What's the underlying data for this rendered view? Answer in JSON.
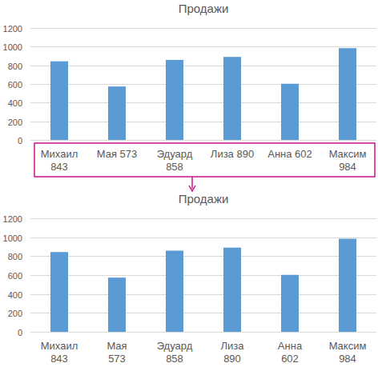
{
  "chart_data": [
    {
      "type": "bar",
      "title": "Продажи",
      "categories": [
        "Михаил 843",
        "Мая 573",
        "Эдуард 858",
        "Лиза 890",
        "Анна 602",
        "Максим 984"
      ],
      "values": [
        843,
        573,
        858,
        890,
        602,
        984
      ],
      "color": "#5b9bd5",
      "ylim": [
        0,
        1200
      ],
      "yticks": [
        0,
        200,
        400,
        600,
        800,
        1000,
        1200
      ],
      "grid": true
    },
    {
      "type": "bar",
      "title": "Продажи",
      "categories": [
        "Михаил\n843",
        "Мая\n573",
        "Эдуард\n858",
        "Лиза\n890",
        "Анна\n602",
        "Максим\n984"
      ],
      "values": [
        843,
        573,
        858,
        890,
        602,
        984
      ],
      "color": "#5b9bd5",
      "ylim": [
        0,
        1200
      ],
      "yticks": [
        0,
        200,
        400,
        600,
        800,
        1000,
        1200
      ],
      "grid": true
    }
  ]
}
